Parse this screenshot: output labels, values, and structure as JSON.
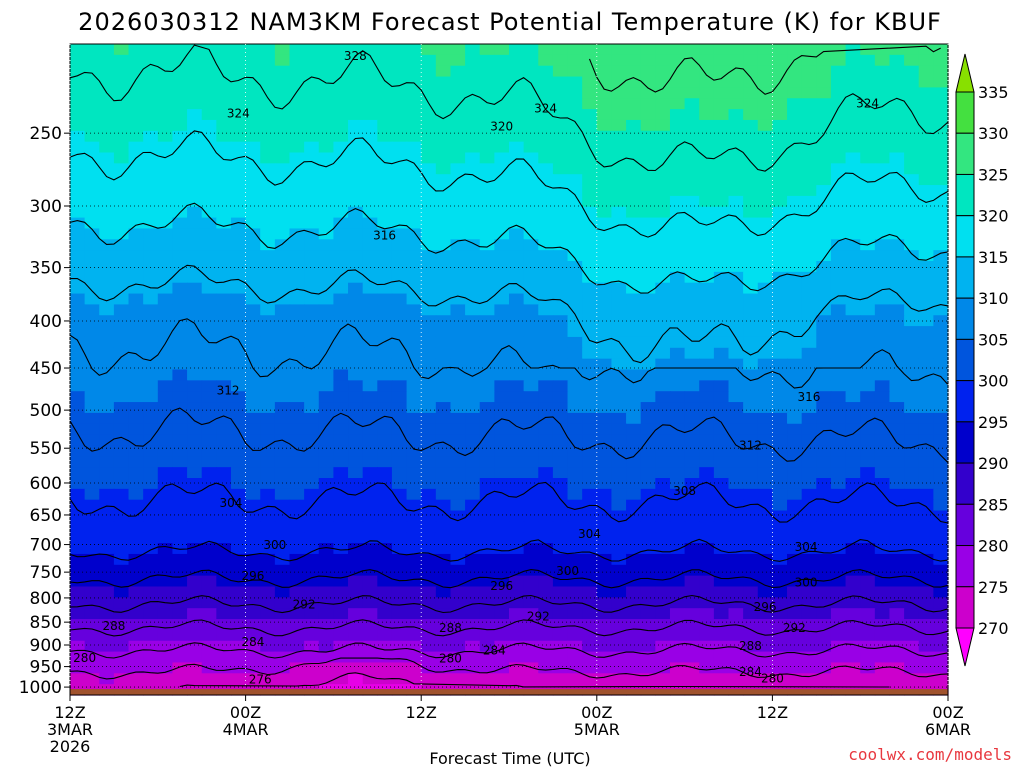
{
  "chart_data": {
    "type": "heatmap",
    "title": "2026030312 NAM3KM Forecast Potential Temperature (K) for KBUF",
    "xlabel": "Forecast Time (UTC)",
    "ylabel": "",
    "x_range_hours": [
      0,
      60
    ],
    "x_ticks": [
      {
        "hours": 0,
        "lines": [
          "12Z",
          "3MAR",
          "2026"
        ]
      },
      {
        "hours": 12,
        "lines": [
          "00Z",
          "4MAR"
        ]
      },
      {
        "hours": 24,
        "lines": [
          "12Z"
        ]
      },
      {
        "hours": 36,
        "lines": [
          "00Z",
          "5MAR"
        ]
      },
      {
        "hours": 48,
        "lines": [
          "12Z"
        ]
      },
      {
        "hours": 60,
        "lines": [
          "00Z",
          "6MAR"
        ]
      }
    ],
    "y_ticks": [
      250,
      300,
      350,
      400,
      450,
      500,
      550,
      600,
      650,
      700,
      750,
      800,
      850,
      900,
      950,
      1000
    ],
    "y_range_hpa": [
      200,
      1020
    ],
    "colorbar": {
      "levels": [
        270,
        275,
        280,
        285,
        290,
        295,
        300,
        305,
        310,
        315,
        320,
        325,
        330,
        335
      ],
      "colors": [
        "#ff00ff",
        "#e600e6",
        "#cc00cc",
        "#9900e6",
        "#6600dd",
        "#3300cc",
        "#0000cc",
        "#0022ee",
        "#0055dd",
        "#0088e8",
        "#00b3f0",
        "#00e0f0",
        "#00e6c0",
        "#33e680",
        "#44e040",
        "#88e000"
      ]
    },
    "surface_color": "#a0522d",
    "contour_labels": [
      {
        "text": "328",
        "hours": 19.5,
        "hpa": 206
      },
      {
        "text": "324",
        "hours": 11.5,
        "hpa": 238
      },
      {
        "text": "324",
        "hours": 32.5,
        "hpa": 235
      },
      {
        "text": "324",
        "hours": 54.5,
        "hpa": 232
      },
      {
        "text": "320",
        "hours": 29.5,
        "hpa": 246
      },
      {
        "text": "316",
        "hours": 21.5,
        "hpa": 323
      },
      {
        "text": "316",
        "hours": 50.5,
        "hpa": 484
      },
      {
        "text": "312",
        "hours": 10.8,
        "hpa": 476
      },
      {
        "text": "312",
        "hours": 46.5,
        "hpa": 546
      },
      {
        "text": "308",
        "hours": 42,
        "hpa": 612
      },
      {
        "text": "304",
        "hours": 11,
        "hpa": 631
      },
      {
        "text": "304",
        "hours": 35.5,
        "hpa": 682
      },
      {
        "text": "304",
        "hours": 50.3,
        "hpa": 704
      },
      {
        "text": "300",
        "hours": 14,
        "hpa": 701
      },
      {
        "text": "300",
        "hours": 34,
        "hpa": 748
      },
      {
        "text": "300",
        "hours": 50.3,
        "hpa": 770
      },
      {
        "text": "296",
        "hours": 12.5,
        "hpa": 757
      },
      {
        "text": "296",
        "hours": 29.5,
        "hpa": 776
      },
      {
        "text": "296",
        "hours": 47.5,
        "hpa": 818
      },
      {
        "text": "292",
        "hours": 16,
        "hpa": 813
      },
      {
        "text": "292",
        "hours": 32,
        "hpa": 838
      },
      {
        "text": "292",
        "hours": 49.5,
        "hpa": 862
      },
      {
        "text": "288",
        "hours": 3,
        "hpa": 858
      },
      {
        "text": "288",
        "hours": 26,
        "hpa": 862
      },
      {
        "text": "288",
        "hours": 46.5,
        "hpa": 902
      },
      {
        "text": "284",
        "hours": 12.5,
        "hpa": 893
      },
      {
        "text": "284",
        "hours": 29,
        "hpa": 913
      },
      {
        "text": "284",
        "hours": 46.5,
        "hpa": 963
      },
      {
        "text": "280",
        "hours": 1,
        "hpa": 930
      },
      {
        "text": "280",
        "hours": 26,
        "hpa": 931
      },
      {
        "text": "280",
        "hours": 48,
        "hpa": 979
      },
      {
        "text": "276",
        "hours": 13,
        "hpa": 981
      }
    ]
  },
  "credit": "coolwx.com/models"
}
